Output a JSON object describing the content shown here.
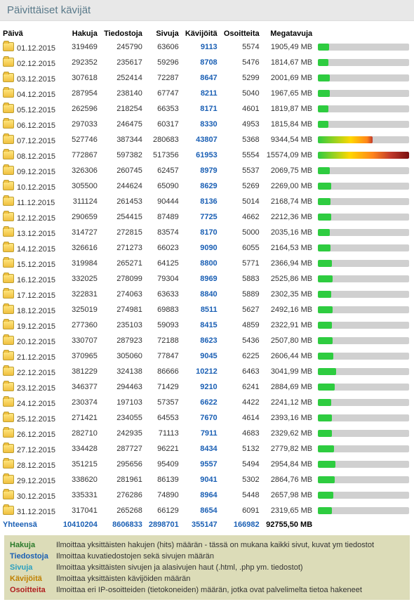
{
  "title": "Päivittäiset kävijät",
  "columns": {
    "date": "Päivä",
    "hits": "Hakuja",
    "files": "Tiedostoja",
    "pages": "Sivuja",
    "visitors": "Kävijöitä",
    "addresses": "Osoitteita",
    "mb": "Megatavuja"
  },
  "maxMb": 15574.09,
  "barColors": {
    "low": "#2ecc40",
    "mid1": "#ffd700",
    "mid2": "#ff851b",
    "high": "#c0392b"
  },
  "rows": [
    {
      "date": "01.12.2015",
      "hits": "319469",
      "files": "245790",
      "pages": "63606",
      "visitors": "9113",
      "addr": "5574",
      "mb": "1905,49 MB",
      "mbv": 1905.49
    },
    {
      "date": "02.12.2015",
      "hits": "292352",
      "files": "235617",
      "pages": "59296",
      "visitors": "8708",
      "addr": "5476",
      "mb": "1814,67 MB",
      "mbv": 1814.67
    },
    {
      "date": "03.12.2015",
      "hits": "307618",
      "files": "252414",
      "pages": "72287",
      "visitors": "8647",
      "addr": "5299",
      "mb": "2001,69 MB",
      "mbv": 2001.69
    },
    {
      "date": "04.12.2015",
      "hits": "287954",
      "files": "238140",
      "pages": "67747",
      "visitors": "8211",
      "addr": "5040",
      "mb": "1967,65 MB",
      "mbv": 1967.65
    },
    {
      "date": "05.12.2015",
      "hits": "262596",
      "files": "218254",
      "pages": "66353",
      "visitors": "8171",
      "addr": "4601",
      "mb": "1819,87 MB",
      "mbv": 1819.87
    },
    {
      "date": "06.12.2015",
      "hits": "297033",
      "files": "246475",
      "pages": "60317",
      "visitors": "8330",
      "addr": "4953",
      "mb": "1815,84 MB",
      "mbv": 1815.84
    },
    {
      "date": "07.12.2015",
      "hits": "527746",
      "files": "387344",
      "pages": "280683",
      "visitors": "43807",
      "addr": "5368",
      "mb": "9344,54 MB",
      "mbv": 9344.54
    },
    {
      "date": "08.12.2015",
      "hits": "772867",
      "files": "597382",
      "pages": "517356",
      "visitors": "61953",
      "addr": "5554",
      "mb": "15574,09 MB",
      "mbv": 15574.09
    },
    {
      "date": "09.12.2015",
      "hits": "326306",
      "files": "260745",
      "pages": "62457",
      "visitors": "8979",
      "addr": "5537",
      "mb": "2069,75 MB",
      "mbv": 2069.75
    },
    {
      "date": "10.12.2015",
      "hits": "305500",
      "files": "244624",
      "pages": "65090",
      "visitors": "8629",
      "addr": "5269",
      "mb": "2269,00 MB",
      "mbv": 2269.0
    },
    {
      "date": "11.12.2015",
      "hits": "311124",
      "files": "261453",
      "pages": "90444",
      "visitors": "8136",
      "addr": "5014",
      "mb": "2168,74 MB",
      "mbv": 2168.74
    },
    {
      "date": "12.12.2015",
      "hits": "290659",
      "files": "254415",
      "pages": "87489",
      "visitors": "7725",
      "addr": "4662",
      "mb": "2212,36 MB",
      "mbv": 2212.36
    },
    {
      "date": "13.12.2015",
      "hits": "314727",
      "files": "272815",
      "pages": "83574",
      "visitors": "8170",
      "addr": "5000",
      "mb": "2035,16 MB",
      "mbv": 2035.16
    },
    {
      "date": "14.12.2015",
      "hits": "326616",
      "files": "271273",
      "pages": "66023",
      "visitors": "9090",
      "addr": "6055",
      "mb": "2164,53 MB",
      "mbv": 2164.53
    },
    {
      "date": "15.12.2015",
      "hits": "319984",
      "files": "265271",
      "pages": "64125",
      "visitors": "8800",
      "addr": "5771",
      "mb": "2366,94 MB",
      "mbv": 2366.94
    },
    {
      "date": "16.12.2015",
      "hits": "332025",
      "files": "278099",
      "pages": "79304",
      "visitors": "8969",
      "addr": "5883",
      "mb": "2525,86 MB",
      "mbv": 2525.86
    },
    {
      "date": "17.12.2015",
      "hits": "322831",
      "files": "274063",
      "pages": "63633",
      "visitors": "8840",
      "addr": "5889",
      "mb": "2302,35 MB",
      "mbv": 2302.35
    },
    {
      "date": "18.12.2015",
      "hits": "325019",
      "files": "274981",
      "pages": "69883",
      "visitors": "8511",
      "addr": "5627",
      "mb": "2492,16 MB",
      "mbv": 2492.16
    },
    {
      "date": "19.12.2015",
      "hits": "277360",
      "files": "235103",
      "pages": "59093",
      "visitors": "8415",
      "addr": "4859",
      "mb": "2322,91 MB",
      "mbv": 2322.91
    },
    {
      "date": "20.12.2015",
      "hits": "330707",
      "files": "287923",
      "pages": "72188",
      "visitors": "8623",
      "addr": "5436",
      "mb": "2507,80 MB",
      "mbv": 2507.8
    },
    {
      "date": "21.12.2015",
      "hits": "370965",
      "files": "305060",
      "pages": "77847",
      "visitors": "9045",
      "addr": "6225",
      "mb": "2606,44 MB",
      "mbv": 2606.44
    },
    {
      "date": "22.12.2015",
      "hits": "381229",
      "files": "324138",
      "pages": "86666",
      "visitors": "10212",
      "addr": "6463",
      "mb": "3041,99 MB",
      "mbv": 3041.99
    },
    {
      "date": "23.12.2015",
      "hits": "346377",
      "files": "294463",
      "pages": "71429",
      "visitors": "9210",
      "addr": "6241",
      "mb": "2884,69 MB",
      "mbv": 2884.69
    },
    {
      "date": "24.12.2015",
      "hits": "230374",
      "files": "197103",
      "pages": "57357",
      "visitors": "6622",
      "addr": "4422",
      "mb": "2241,12 MB",
      "mbv": 2241.12
    },
    {
      "date": "25.12.2015",
      "hits": "271421",
      "files": "234055",
      "pages": "64553",
      "visitors": "7670",
      "addr": "4614",
      "mb": "2393,16 MB",
      "mbv": 2393.16
    },
    {
      "date": "26.12.2015",
      "hits": "282710",
      "files": "242935",
      "pages": "71113",
      "visitors": "7911",
      "addr": "4683",
      "mb": "2329,62 MB",
      "mbv": 2329.62
    },
    {
      "date": "27.12.2015",
      "hits": "334428",
      "files": "287727",
      "pages": "96221",
      "visitors": "8434",
      "addr": "5132",
      "mb": "2779,82 MB",
      "mbv": 2779.82
    },
    {
      "date": "28.12.2015",
      "hits": "351215",
      "files": "295656",
      "pages": "95409",
      "visitors": "9557",
      "addr": "5494",
      "mb": "2954,84 MB",
      "mbv": 2954.84
    },
    {
      "date": "29.12.2015",
      "hits": "338620",
      "files": "281961",
      "pages": "86139",
      "visitors": "9041",
      "addr": "5302",
      "mb": "2864,76 MB",
      "mbv": 2864.76
    },
    {
      "date": "30.12.2015",
      "hits": "335331",
      "files": "276286",
      "pages": "74890",
      "visitors": "8964",
      "addr": "5448",
      "mb": "2657,98 MB",
      "mbv": 2657.98
    },
    {
      "date": "31.12.2015",
      "hits": "317041",
      "files": "265268",
      "pages": "66129",
      "visitors": "8654",
      "addr": "6091",
      "mb": "2319,65 MB",
      "mbv": 2319.65
    }
  ],
  "totals": {
    "label": "Yhteensä",
    "hits": "10410204",
    "files": "8606833",
    "pages": "2898701",
    "visitors": "355147",
    "addr": "166982",
    "mb": "92755,50 MB"
  },
  "legend": [
    {
      "key": "Hakuja",
      "cls": "hak",
      "val": "Ilmoittaa yksittäisten hakujen (hits) määrän - tässä on mukana kaikki sivut, kuvat ym tiedostot"
    },
    {
      "key": "Tiedostoja",
      "cls": "tie",
      "val": "Ilmoittaa kuvatiedostojen sekä sivujen määrän"
    },
    {
      "key": "Sivuja",
      "cls": "siv",
      "val": "Ilmoittaa yksittäisten sivujen ja alasivujen haut (.html, .php ym. tiedostot)"
    },
    {
      "key": "Kävijöitä",
      "cls": "kav",
      "val": "Ilmoittaa yksittäisten kävijöiden määrän"
    },
    {
      "key": "Osoitteita",
      "cls": "oso",
      "val": "Ilmoittaa eri IP-osoitteiden (tietokoneiden) määrän, jotka ovat palvelimelta tietoa hakeneet"
    }
  ]
}
